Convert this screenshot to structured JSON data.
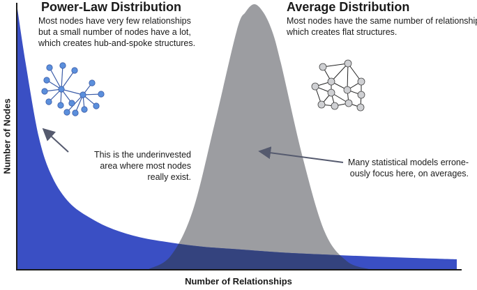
{
  "chart_data": {
    "type": "area",
    "title": "",
    "xlabel": "Number of Relationships",
    "ylabel": "Number of Nodes",
    "xlim": [
      0,
      1
    ],
    "ylim": [
      0,
      1
    ],
    "series": [
      {
        "name": "Power-Law Distribution",
        "color": "#3a4fc4",
        "x": [
          0.0,
          0.02,
          0.05,
          0.08,
          0.12,
          0.17,
          0.22,
          0.28,
          0.35,
          0.42,
          0.5,
          0.6,
          0.7,
          0.8,
          0.9,
          1.0
        ],
        "values": [
          1.0,
          0.78,
          0.5,
          0.35,
          0.25,
          0.19,
          0.15,
          0.12,
          0.1,
          0.085,
          0.075,
          0.063,
          0.055,
          0.048,
          0.042,
          0.037
        ]
      },
      {
        "name": "Average Distribution",
        "color": "#9c9da1",
        "x": [
          0.3,
          0.35,
          0.4,
          0.45,
          0.5,
          0.52,
          0.54,
          0.56,
          0.58,
          0.6,
          0.65,
          0.7,
          0.75,
          0.8
        ],
        "values": [
          0.0,
          0.05,
          0.22,
          0.55,
          0.9,
          0.97,
          1.0,
          0.97,
          0.9,
          0.78,
          0.42,
          0.14,
          0.03,
          0.0
        ]
      }
    ]
  },
  "power_law": {
    "title": "Power-Law Distribution",
    "description": [
      "Most nodes have very few relationships",
      "but a small number of nodes have a lot,",
      "which creates hub-and-spoke structures."
    ],
    "annotation": [
      "This is the underinvested",
      "area where most nodes",
      "really exist."
    ]
  },
  "average": {
    "title": "Average Distribution",
    "description": [
      "Most nodes have the same number of relationships,",
      "which creates flat structures."
    ],
    "annotation": [
      "Many statistical models errone-",
      "ously focus here, on averages."
    ]
  },
  "colors": {
    "power_law": "#3a4fc4",
    "average": "#9c9da1",
    "overlap": "#34437e",
    "hub_node": "#5b8fdc",
    "flat_node": "#cfd0d3",
    "axis": "#1a1a1a",
    "arrow": "#555a6e"
  }
}
